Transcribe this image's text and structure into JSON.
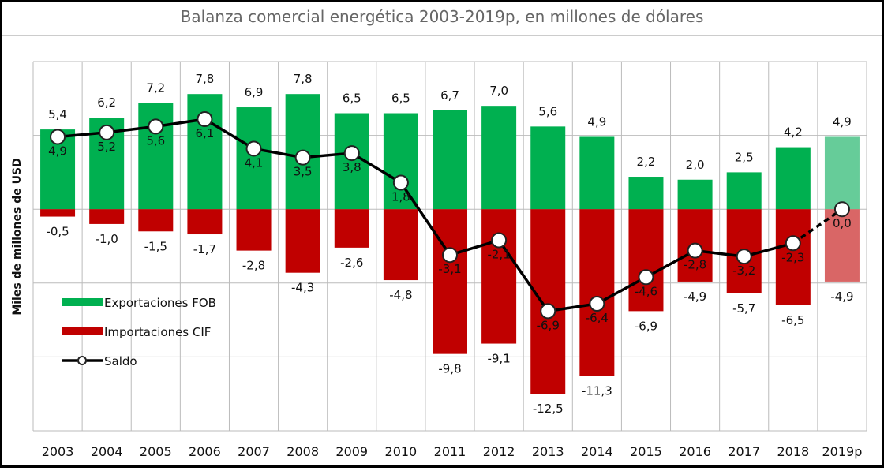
{
  "chart_data": {
    "type": "bar_line",
    "title": "Balanza comercial energética 2003-2019p, en millones de dólares",
    "y_label": "Miles de millones de USD",
    "categories": [
      "2003",
      "2004",
      "2005",
      "2006",
      "2007",
      "2008",
      "2009",
      "2010",
      "2011",
      "2012",
      "2013",
      "2014",
      "2015",
      "2016",
      "2017",
      "2018",
      "2019p"
    ],
    "ylim": [
      -15,
      10
    ],
    "yticks": [
      -15,
      -10,
      -5,
      0,
      5,
      10
    ],
    "grid": true,
    "series": [
      {
        "name": "Exportaciones FOB",
        "type": "bar",
        "color": "#00b050",
        "colors": [
          "#00b050",
          "#00b050",
          "#00b050",
          "#00b050",
          "#00b050",
          "#00b050",
          "#00b050",
          "#00b050",
          "#00b050",
          "#00b050",
          "#00b050",
          "#00b050",
          "#00b050",
          "#00b050",
          "#00b050",
          "#00b050",
          "#66cc99"
        ],
        "values": [
          5.4,
          6.2,
          7.2,
          7.8,
          6.9,
          7.8,
          6.5,
          6.5,
          6.7,
          7.0,
          5.6,
          4.9,
          2.2,
          2.0,
          2.5,
          4.2,
          4.9
        ],
        "value_labels": [
          "5,4",
          "6,2",
          "7,2",
          "7,8",
          "6,9",
          "7,8",
          "6,5",
          "6,5",
          "6,7",
          "7,0",
          "5,6",
          "4,9",
          "2,2",
          "2,0",
          "2,5",
          "4,2",
          "4,9"
        ]
      },
      {
        "name": "Importaciones CIF",
        "type": "bar",
        "color": "#c00000",
        "colors": [
          "#c00000",
          "#c00000",
          "#c00000",
          "#c00000",
          "#c00000",
          "#c00000",
          "#c00000",
          "#c00000",
          "#c00000",
          "#c00000",
          "#c00000",
          "#c00000",
          "#c00000",
          "#c00000",
          "#c00000",
          "#c00000",
          "#d96666"
        ],
        "values": [
          -0.5,
          -1.0,
          -1.5,
          -1.7,
          -2.8,
          -4.3,
          -2.6,
          -4.8,
          -9.8,
          -9.1,
          -12.5,
          -11.3,
          -6.9,
          -4.9,
          -5.7,
          -6.5,
          -4.9
        ],
        "value_labels": [
          "-0,5",
          "-1,0",
          "-1,5",
          "-1,7",
          "-2,8",
          "-4,3",
          "-2,6",
          "-4,8",
          "-9,8",
          "-9,1",
          "-12,5",
          "-11,3",
          "-6,9",
          "-4,9",
          "-5,7",
          "-6,5",
          "-4,9"
        ]
      },
      {
        "name": "Saldo",
        "type": "line",
        "color": "#000000",
        "dashed": [
          false,
          false,
          false,
          false,
          false,
          false,
          false,
          false,
          false,
          false,
          false,
          false,
          false,
          false,
          false,
          false,
          true
        ],
        "values": [
          4.9,
          5.2,
          5.6,
          6.1,
          4.1,
          3.5,
          3.8,
          1.8,
          -3.1,
          -2.1,
          -6.9,
          -6.4,
          -4.6,
          -2.8,
          -3.2,
          -2.3,
          0.0
        ],
        "value_labels": [
          "4,9",
          "5,2",
          "5,6",
          "6,1",
          "4,1",
          "3,5",
          "3,8",
          "1,8",
          "-3,1",
          "-2,1",
          "-6,9",
          "-6,4",
          "-4,6",
          "-2,8",
          "-3,2",
          "-2,3",
          "0,0"
        ]
      }
    ]
  }
}
